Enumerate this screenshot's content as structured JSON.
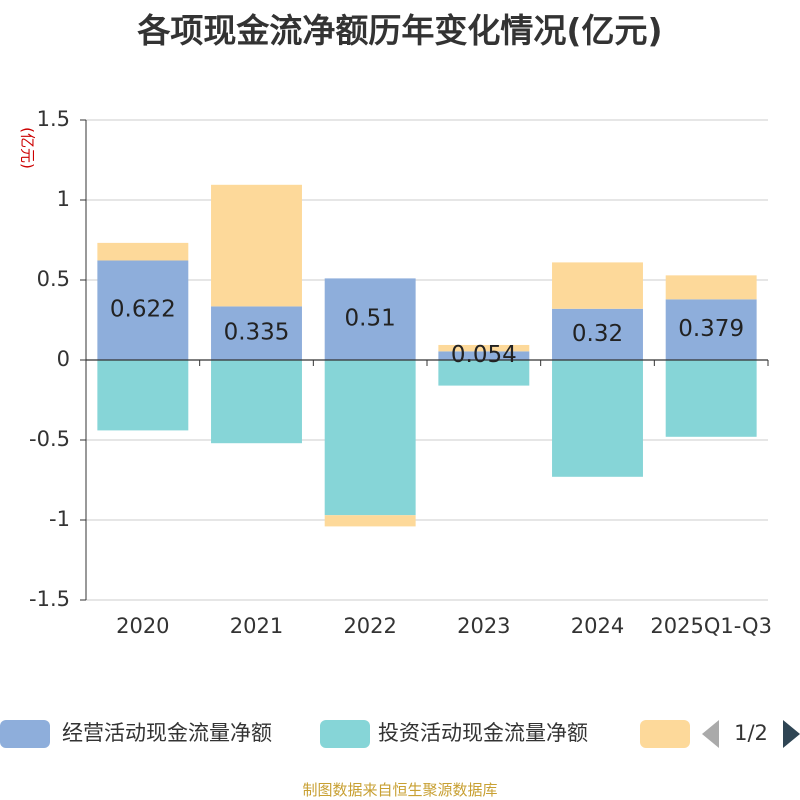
{
  "chart_data": {
    "type": "bar",
    "stacked": true,
    "title": "各项现金流净额历年变化情况(亿元)",
    "ylabel": "(亿元)",
    "xlabel": "",
    "categories": [
      "2020",
      "2021",
      "2022",
      "2023",
      "2024",
      "2025Q1-Q3"
    ],
    "ylim": [
      -1.5,
      1.5
    ],
    "yticks": [
      1.5,
      1,
      0.5,
      0,
      -0.5,
      -1,
      -1.5
    ],
    "ytick_labels": [
      "1.5",
      "1",
      "0.5",
      "0",
      "-0.5",
      "-1",
      "-1.5"
    ],
    "series": [
      {
        "name": "经营活动现金流量净额",
        "color": "#8eaedb",
        "values": [
          0.622,
          0.335,
          0.51,
          0.054,
          0.32,
          0.379
        ],
        "labels": [
          "0.622",
          "0.335",
          "0.51",
          "0.054",
          "0.32",
          "0.379"
        ]
      },
      {
        "name": "投资活动现金流量净额",
        "color": "#86d5d7",
        "values": [
          -0.44,
          -0.52,
          -0.97,
          -0.16,
          -0.73,
          -0.48
        ]
      },
      {
        "name": "",
        "color": "#fdd99a",
        "values": [
          0.11,
          0.76,
          -0.07,
          0.04,
          0.29,
          0.15
        ]
      }
    ],
    "grid": true,
    "legend": {
      "placement": "bottom",
      "page": "1/2"
    }
  },
  "footer": {
    "source": "制图数据来自恒生聚源数据库"
  }
}
